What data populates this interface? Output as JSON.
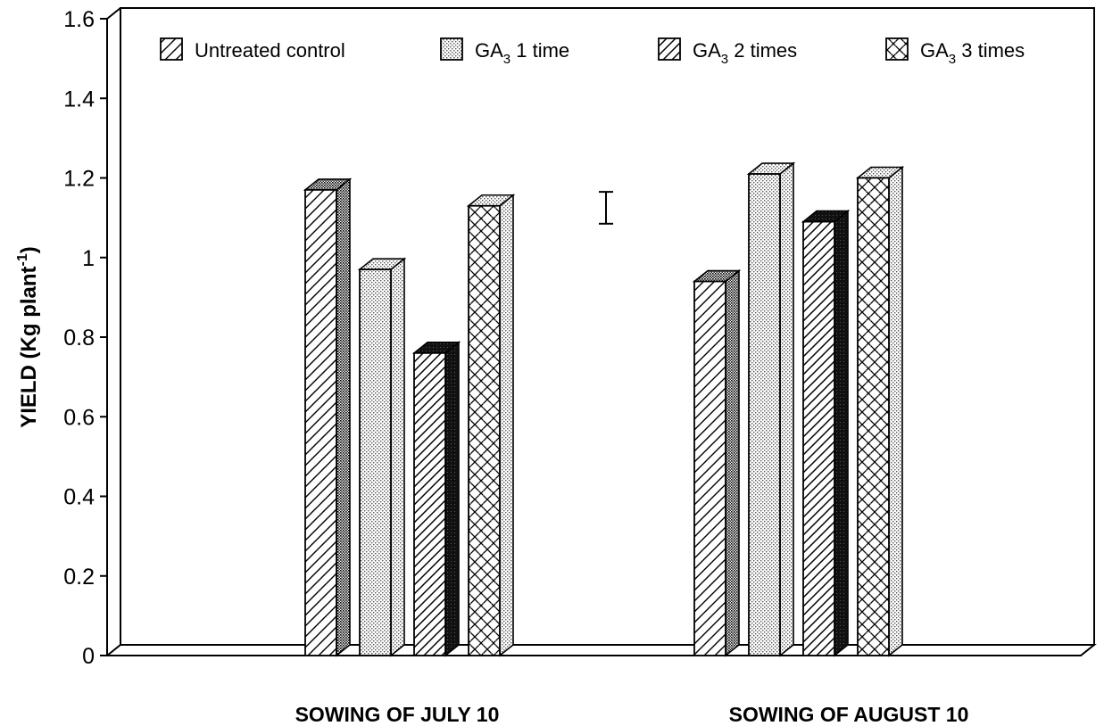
{
  "chart_data": {
    "type": "bar",
    "title": "",
    "xlabel": "",
    "ylabel": "YIELD (Kg plant",
    "ylabel_superscript": "-1",
    "ylabel_close": ")",
    "ylim": [
      0,
      1.6
    ],
    "yticks": [
      "0",
      "0.2",
      "0.4",
      "0.6",
      "0.8",
      "1",
      "1.2",
      "1.4",
      "1.6"
    ],
    "categories": [
      "SOWING OF JULY 10",
      "SOWING OF AUGUST 10"
    ],
    "series": [
      {
        "name": "Untreated control",
        "values": [
          1.17,
          0.94
        ]
      },
      {
        "name": "GA3 1 time",
        "values": [
          0.97,
          1.21
        ]
      },
      {
        "name": "GA3 2 times",
        "values": [
          0.76,
          1.09
        ]
      },
      {
        "name": "GA3 3 times",
        "values": [
          1.13,
          1.2
        ]
      }
    ],
    "legend": [
      {
        "prefix": "Untreated control",
        "sub": "",
        "suffix": ""
      },
      {
        "prefix": "GA",
        "sub": "3",
        "suffix": " 1 time"
      },
      {
        "prefix": "GA",
        "sub": "3",
        "suffix": " 2 times"
      },
      {
        "prefix": "GA",
        "sub": "3",
        "suffix": " 3 times"
      }
    ],
    "legend_position": "top",
    "grid": false,
    "error_bar": {
      "low": 1.085,
      "high": 1.165
    }
  }
}
